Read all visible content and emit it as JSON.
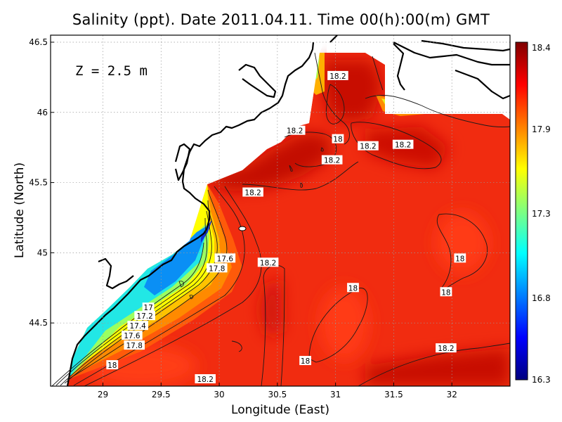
{
  "chart_data": {
    "type": "heatmap",
    "title": "Salinity (ppt). Date 2011.04.11. Time 00(h):00(m) GMT",
    "xlabel": "Longitude (East)",
    "ylabel": "Latitude (North)",
    "xlim": [
      28.55,
      32.5
    ],
    "ylim": [
      44.05,
      46.55
    ],
    "xticks": [
      "29",
      "29.5",
      "30",
      "30.5",
      "31",
      "31.5",
      "32"
    ],
    "yticks": [
      "44.5",
      "45",
      "45.5",
      "46",
      "46.5"
    ],
    "depth_label": "Z = 2.5 m",
    "colorbar": {
      "min": 16.3,
      "max": 18.4,
      "tick_labels": [
        "18.4",
        "17.9",
        "17.3",
        "16.8",
        "16.3"
      ],
      "colors": [
        "#00007f",
        "#0000ff",
        "#007fff",
        "#00ffff",
        "#7fff7f",
        "#ffff00",
        "#ff7f00",
        "#ff0000",
        "#7f0000"
      ]
    },
    "grid": true,
    "contour_labels": [
      {
        "text": "18.2",
        "lon": 31.02,
        "lat": 46.26
      },
      {
        "text": "18.2",
        "lon": 30.65,
        "lat": 45.87
      },
      {
        "text": "18",
        "lon": 31.02,
        "lat": 45.81
      },
      {
        "text": "18.2",
        "lon": 31.28,
        "lat": 45.76
      },
      {
        "text": "18.2",
        "lon": 31.58,
        "lat": 45.77
      },
      {
        "text": "18.2",
        "lon": 30.97,
        "lat": 45.66
      },
      {
        "text": "18.2",
        "lon": 30.29,
        "lat": 45.43
      },
      {
        "text": "17.6",
        "lon": 30.05,
        "lat": 44.96
      },
      {
        "text": "17.8",
        "lon": 29.98,
        "lat": 44.89
      },
      {
        "text": "18.2",
        "lon": 30.42,
        "lat": 44.93
      },
      {
        "text": "18",
        "lon": 32.07,
        "lat": 44.96
      },
      {
        "text": "18",
        "lon": 31.15,
        "lat": 44.75
      },
      {
        "text": "18",
        "lon": 31.95,
        "lat": 44.72
      },
      {
        "text": "17",
        "lon": 29.39,
        "lat": 44.61
      },
      {
        "text": "17.2",
        "lon": 29.36,
        "lat": 44.55
      },
      {
        "text": "17.4",
        "lon": 29.3,
        "lat": 44.48
      },
      {
        "text": "17.6",
        "lon": 29.25,
        "lat": 44.41
      },
      {
        "text": "17.8",
        "lon": 29.27,
        "lat": 44.34
      },
      {
        "text": "18",
        "lon": 29.08,
        "lat": 44.2
      },
      {
        "text": "18",
        "lon": 30.74,
        "lat": 44.23
      },
      {
        "text": "18.2",
        "lon": 31.95,
        "lat": 44.32
      },
      {
        "text": "18.2",
        "lon": 29.88,
        "lat": 44.1
      }
    ]
  }
}
